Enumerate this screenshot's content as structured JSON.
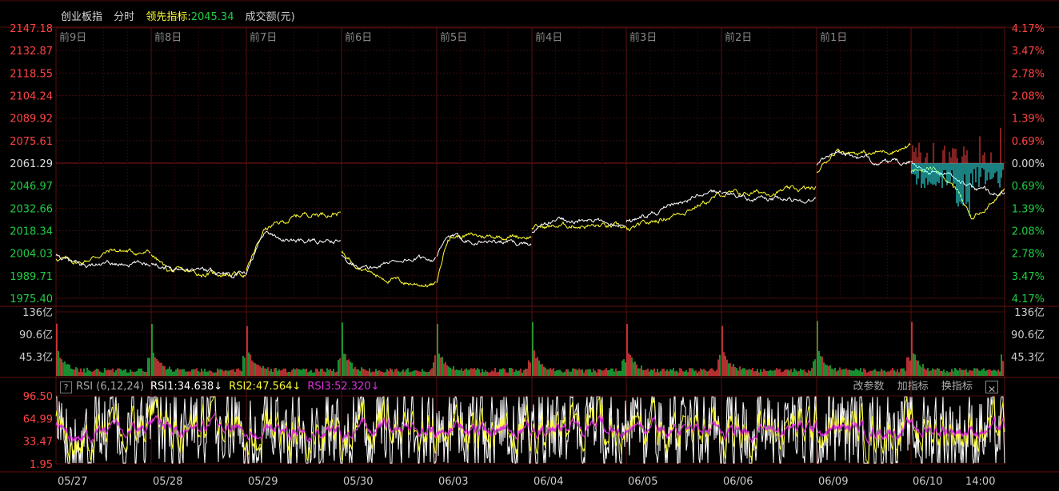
{
  "header": {
    "name": "创业板指",
    "mode": "分时",
    "lead_label": "领先指标:",
    "lead_value": "2045.34",
    "volume_label": "成交额(元)"
  },
  "price_axis": {
    "left_labels": [
      "2147.18",
      "2132.87",
      "2118.55",
      "2104.24",
      "2089.92",
      "2075.61",
      "2061.29",
      "2046.97",
      "2032.66",
      "2018.34",
      "2004.03",
      "1989.71",
      "1975.40"
    ],
    "right_labels": [
      "4.17%",
      "3.47%",
      "2.78%",
      "2.08%",
      "1.39%",
      "0.69%",
      "0.00%",
      "0.69%",
      "1.39%",
      "2.08%",
      "2.78%",
      "3.47%",
      "4.17%"
    ],
    "min": 1975.4,
    "max": 2147.18,
    "base": 2061.29
  },
  "day_labels": [
    "前9日",
    "前8日",
    "前7日",
    "前6日",
    "前5日",
    "前4日",
    "前3日",
    "前2日",
    "前1日"
  ],
  "volume_axis": {
    "labels": [
      "136亿",
      "90.6亿",
      "45.3亿"
    ]
  },
  "rsi": {
    "settings": "RSI (6,12,24)",
    "rsi1": "RSI1:34.638↓",
    "rsi2": "RSI2:47.564↓",
    "rsi3": "RSI3:52.320↓",
    "axis_labels": [
      "96.50",
      "64.99",
      "33.47",
      "1.95"
    ],
    "actions": [
      "改参数",
      "加指标",
      "换指标"
    ],
    "close": "✕"
  },
  "date_labels": [
    "05/27",
    "05/28",
    "05/29",
    "05/30",
    "06/03",
    "06/04",
    "06/05",
    "06/06",
    "06/09",
    "06/10",
    "14:00"
  ],
  "colors": {
    "up": "#ff4444",
    "down": "#22cc44",
    "price_line": "#ffffff",
    "lead_line": "#ffff33",
    "rsi1": "#ffffff",
    "rsi2": "#ffff33",
    "rsi3": "#dd33dd",
    "cyan": "#33ffff",
    "grid": "#3a0a0a"
  }
}
